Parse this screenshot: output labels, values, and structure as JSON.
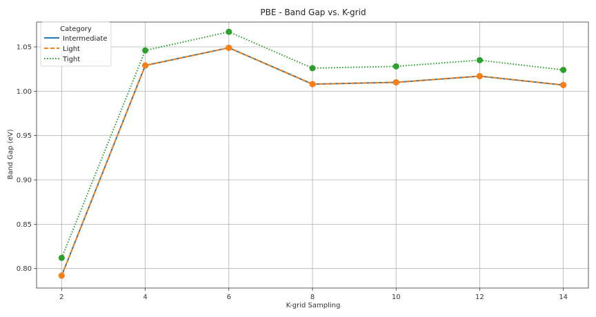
{
  "chart_data": {
    "type": "line",
    "title": "PBE - Band Gap vs. K-grid",
    "xlabel": "K-grid Sampling",
    "ylabel": "Band Gap (eV)",
    "x": [
      2,
      4,
      6,
      8,
      10,
      12,
      14
    ],
    "xlim": [
      1.4,
      14.6
    ],
    "ylim": [
      0.778,
      1.078
    ],
    "xticks": [
      2,
      4,
      6,
      8,
      10,
      12,
      14
    ],
    "yticks": [
      0.8,
      0.85,
      0.9,
      0.95,
      1.0,
      1.05
    ],
    "xtick_labels": [
      "2",
      "4",
      "6",
      "8",
      "10",
      "12",
      "14"
    ],
    "ytick_labels": [
      "0.80",
      "0.85",
      "0.90",
      "0.95",
      "1.00",
      "1.05"
    ],
    "grid": true,
    "legend": {
      "title": "Category",
      "placement": "top-left"
    },
    "series": [
      {
        "name": "Intermediate",
        "color": "#1f77b4",
        "style": "solid",
        "values": [
          0.792,
          1.029,
          1.049,
          1.008,
          1.01,
          1.017,
          1.007
        ]
      },
      {
        "name": "Light",
        "color": "#ff7f0e",
        "style": "dashed",
        "values": [
          0.792,
          1.029,
          1.049,
          1.008,
          1.01,
          1.017,
          1.007
        ]
      },
      {
        "name": "Tight",
        "color": "#2ca02c",
        "style": "dotted",
        "values": [
          0.812,
          1.046,
          1.067,
          1.026,
          1.028,
          1.035,
          1.024
        ]
      }
    ]
  }
}
